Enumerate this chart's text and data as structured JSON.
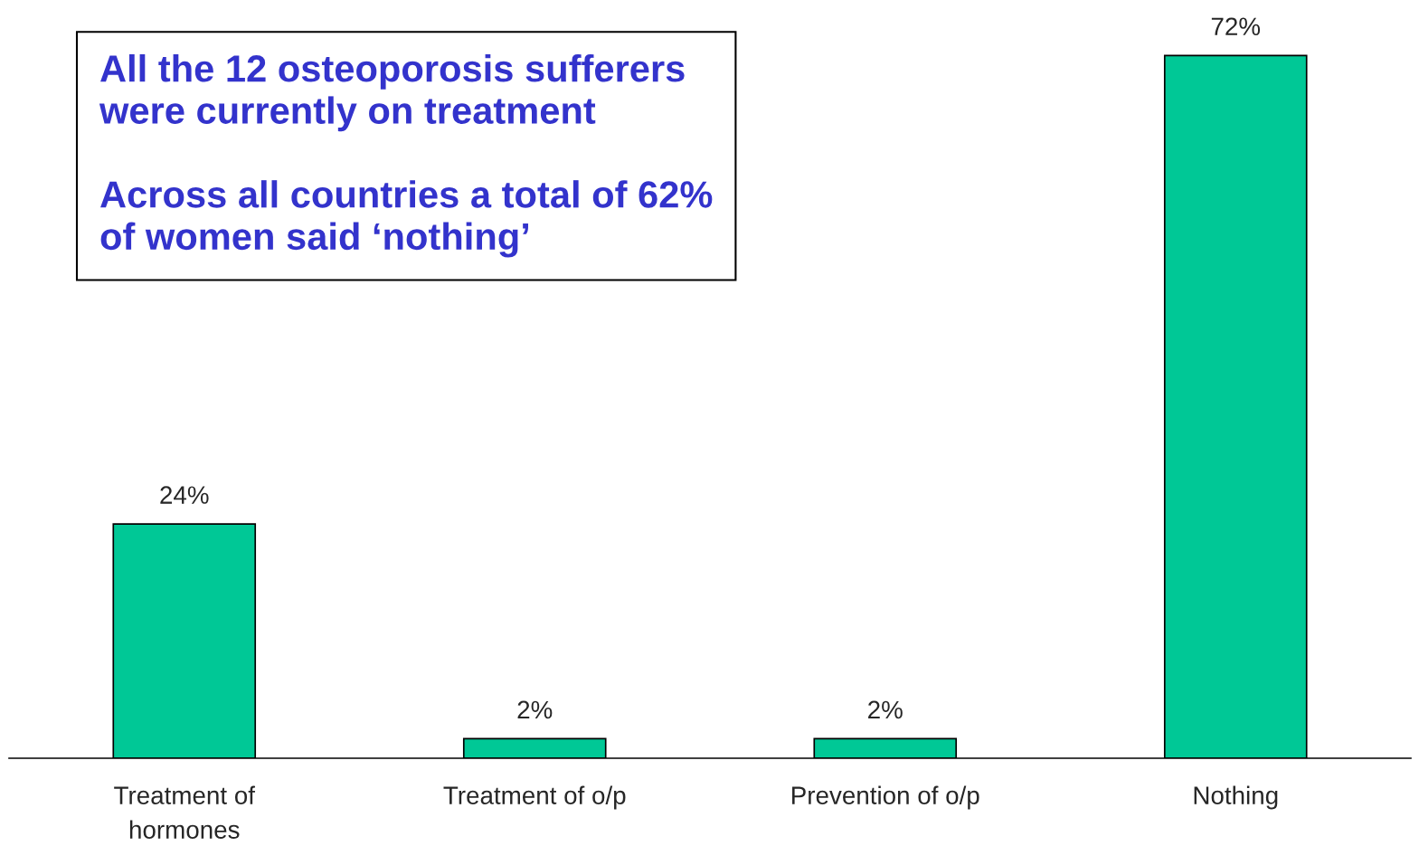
{
  "chart_data": {
    "type": "bar",
    "categories": [
      "Treatment of\nhormones",
      "Treatment of o/p",
      "Prevention of o/p",
      "Nothing"
    ],
    "values": [
      24,
      2,
      2,
      72
    ],
    "value_labels": [
      "24%",
      "2%",
      "2%",
      "72%"
    ],
    "color": "#00c896",
    "grid": false,
    "legend": false,
    "annotations": [
      "All the 12 osteoporosis sufferers\nwere currently on treatment",
      "Across all countries a total of 62%\nof women said ‘nothing’"
    ]
  }
}
